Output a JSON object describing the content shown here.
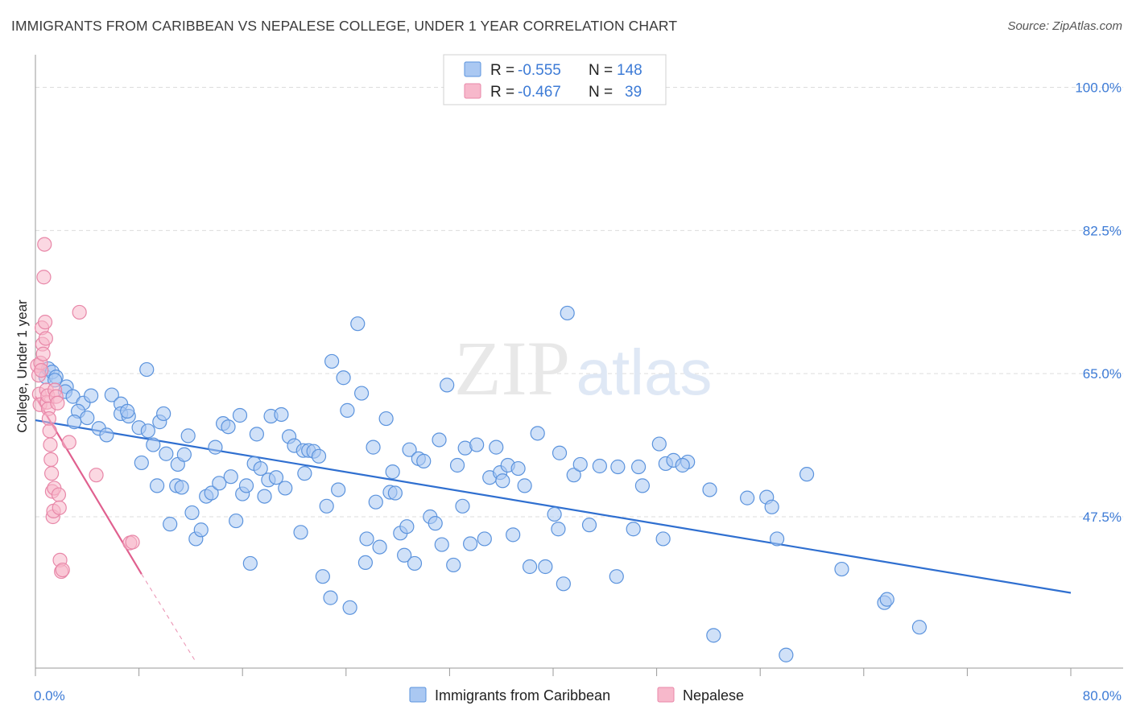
{
  "title": "IMMIGRANTS FROM CARIBBEAN VS NEPALESE COLLEGE, UNDER 1 YEAR CORRELATION CHART",
  "source": "Source: ZipAtlas.com",
  "watermark": {
    "zip": "ZIP",
    "atlas": "atlas"
  },
  "colors": {
    "blue_fill": "#aac8f2",
    "blue_stroke": "#5b93dd",
    "blue_line": "#2f6fd0",
    "pink_fill": "#f7b8cb",
    "pink_stroke": "#e887a8",
    "pink_line": "#e0608f",
    "tick_text": "#3d7bd6",
    "grid": "#dddddd"
  },
  "legend": {
    "rows": [
      {
        "r_label": "R =",
        "r_value": "-0.555",
        "n_label": "N =",
        "n_value": "148"
      },
      {
        "r_label": "R =",
        "r_value": "-0.467",
        "n_label": "N =",
        "n_value": "39"
      }
    ]
  },
  "chart_data": {
    "type": "scatter",
    "title": "IMMIGRANTS FROM CARIBBEAN VS NEPALESE COLLEGE, UNDER 1 YEAR CORRELATION CHART",
    "xlabel": "",
    "ylabel": "College, Under 1 year",
    "xlim": [
      0,
      80
    ],
    "ylim": [
      29,
      103
    ],
    "x_tick_labels": [
      "0.0%",
      "80.0%"
    ],
    "y_ticks": [
      {
        "value": 100,
        "label": "100.0%"
      },
      {
        "value": 82.5,
        "label": "82.5%"
      },
      {
        "value": 65,
        "label": "65.0%"
      },
      {
        "value": 47.5,
        "label": "47.5%"
      }
    ],
    "grid": true,
    "legend_position": "top-center",
    "series": [
      {
        "name": "Immigrants from Caribbean",
        "color": "blue",
        "R": -0.555,
        "N": 148,
        "trend": {
          "x": [
            0,
            80
          ],
          "y": [
            59.3,
            38.2
          ]
        },
        "points": [
          [
            0.8,
            64.6
          ],
          [
            1.0,
            65.6
          ],
          [
            1.3,
            65.2
          ],
          [
            1.6,
            64.6
          ],
          [
            1.5,
            64.2
          ],
          [
            2.4,
            63.4
          ],
          [
            2.3,
            62.8
          ],
          [
            2.9,
            62.2
          ],
          [
            3.7,
            61.4
          ],
          [
            3.3,
            60.4
          ],
          [
            3.0,
            59.1
          ],
          [
            4.3,
            62.3
          ],
          [
            4.0,
            59.6
          ],
          [
            4.9,
            58.3
          ],
          [
            5.5,
            57.5
          ],
          [
            5.9,
            62.4
          ],
          [
            6.6,
            61.3
          ],
          [
            6.6,
            60.1
          ],
          [
            7.2,
            59.8
          ],
          [
            7.1,
            60.4
          ],
          [
            8.0,
            58.4
          ],
          [
            8.2,
            54.1
          ],
          [
            8.7,
            58.0
          ],
          [
            8.6,
            65.5
          ],
          [
            9.1,
            56.3
          ],
          [
            9.4,
            51.3
          ],
          [
            9.6,
            59.1
          ],
          [
            9.9,
            60.1
          ],
          [
            10.1,
            55.2
          ],
          [
            10.4,
            46.6
          ],
          [
            10.9,
            51.3
          ],
          [
            11.0,
            53.9
          ],
          [
            11.3,
            51.1
          ],
          [
            11.5,
            55.1
          ],
          [
            11.8,
            57.4
          ],
          [
            12.1,
            48.0
          ],
          [
            12.4,
            44.8
          ],
          [
            12.8,
            45.9
          ],
          [
            13.2,
            50.0
          ],
          [
            13.6,
            50.4
          ],
          [
            13.9,
            56.0
          ],
          [
            14.2,
            51.6
          ],
          [
            14.5,
            58.9
          ],
          [
            14.9,
            58.5
          ],
          [
            15.1,
            52.4
          ],
          [
            15.5,
            47.0
          ],
          [
            15.8,
            59.9
          ],
          [
            16.0,
            50.3
          ],
          [
            16.3,
            51.3
          ],
          [
            16.6,
            41.8
          ],
          [
            16.9,
            54.0
          ],
          [
            17.1,
            57.6
          ],
          [
            17.4,
            53.4
          ],
          [
            17.7,
            50.0
          ],
          [
            18.0,
            52.0
          ],
          [
            18.2,
            59.8
          ],
          [
            18.6,
            52.3
          ],
          [
            19.0,
            60.0
          ],
          [
            19.3,
            51.0
          ],
          [
            19.6,
            57.3
          ],
          [
            20.0,
            56.2
          ],
          [
            20.5,
            45.6
          ],
          [
            20.8,
            52.8
          ],
          [
            20.7,
            55.6
          ],
          [
            21.1,
            55.6
          ],
          [
            21.5,
            55.5
          ],
          [
            21.9,
            54.9
          ],
          [
            22.2,
            40.2
          ],
          [
            22.5,
            48.8
          ],
          [
            22.9,
            66.5
          ],
          [
            23.4,
            50.8
          ],
          [
            22.8,
            37.6
          ],
          [
            23.8,
            64.5
          ],
          [
            24.1,
            60.5
          ],
          [
            24.3,
            36.4
          ],
          [
            24.9,
            71.1
          ],
          [
            25.2,
            62.6
          ],
          [
            25.6,
            44.8
          ],
          [
            25.5,
            41.9
          ],
          [
            26.1,
            56.0
          ],
          [
            26.3,
            49.3
          ],
          [
            26.6,
            43.8
          ],
          [
            27.1,
            59.5
          ],
          [
            27.4,
            50.5
          ],
          [
            27.8,
            50.4
          ],
          [
            27.6,
            53.0
          ],
          [
            28.2,
            45.5
          ],
          [
            28.5,
            42.8
          ],
          [
            28.7,
            46.3
          ],
          [
            28.9,
            55.7
          ],
          [
            29.3,
            41.8
          ],
          [
            29.6,
            54.6
          ],
          [
            30.0,
            54.3
          ],
          [
            30.5,
            47.5
          ],
          [
            30.9,
            46.7
          ],
          [
            31.2,
            56.9
          ],
          [
            31.4,
            44.1
          ],
          [
            31.8,
            63.6
          ],
          [
            32.3,
            41.6
          ],
          [
            32.6,
            53.8
          ],
          [
            33.2,
            55.9
          ],
          [
            33.6,
            44.2
          ],
          [
            34.1,
            56.3
          ],
          [
            34.7,
            44.8
          ],
          [
            35.1,
            52.3
          ],
          [
            35.6,
            56.0
          ],
          [
            35.9,
            52.9
          ],
          [
            36.1,
            51.9
          ],
          [
            36.5,
            53.8
          ],
          [
            36.9,
            45.3
          ],
          [
            37.3,
            53.4
          ],
          [
            37.8,
            51.3
          ],
          [
            38.2,
            41.4
          ],
          [
            38.8,
            57.7
          ],
          [
            39.4,
            41.4
          ],
          [
            40.1,
            47.8
          ],
          [
            40.4,
            46.0
          ],
          [
            40.5,
            55.3
          ],
          [
            40.8,
            39.3
          ],
          [
            41.1,
            72.4
          ],
          [
            41.6,
            52.6
          ],
          [
            42.1,
            53.9
          ],
          [
            42.8,
            46.5
          ],
          [
            43.6,
            53.7
          ],
          [
            44.9,
            40.2
          ],
          [
            46.2,
            46.0
          ],
          [
            46.6,
            53.6
          ],
          [
            46.9,
            51.3
          ],
          [
            48.2,
            56.4
          ],
          [
            48.7,
            54.0
          ],
          [
            48.5,
            44.8
          ],
          [
            49.3,
            54.4
          ],
          [
            50.4,
            54.2
          ],
          [
            52.1,
            50.8
          ],
          [
            52.4,
            33.0
          ],
          [
            55.0,
            49.8
          ],
          [
            56.5,
            49.9
          ],
          [
            56.9,
            48.7
          ],
          [
            57.3,
            44.8
          ],
          [
            58.0,
            30.6
          ],
          [
            59.6,
            52.7
          ],
          [
            62.3,
            41.1
          ],
          [
            65.6,
            37.0
          ],
          [
            65.8,
            37.4
          ],
          [
            68.3,
            34.0
          ],
          [
            50.0,
            53.8
          ],
          [
            33.0,
            48.8
          ],
          [
            45.0,
            53.6
          ]
        ]
      },
      {
        "name": "Nepalese",
        "color": "pink",
        "R": -0.467,
        "N": 39,
        "trend": {
          "x": [
            0,
            8.2,
            12.3
          ],
          "y": [
            62.2,
            40.5,
            30.0
          ]
        },
        "points": [
          [
            0.15,
            66.0
          ],
          [
            0.25,
            64.8
          ],
          [
            0.3,
            62.5
          ],
          [
            0.35,
            61.2
          ],
          [
            0.4,
            66.3
          ],
          [
            0.45,
            65.4
          ],
          [
            0.5,
            70.6
          ],
          [
            0.55,
            68.6
          ],
          [
            0.6,
            67.4
          ],
          [
            0.65,
            76.8
          ],
          [
            0.7,
            80.8
          ],
          [
            0.75,
            71.3
          ],
          [
            0.8,
            69.3
          ],
          [
            0.85,
            63.0
          ],
          [
            0.9,
            61.5
          ],
          [
            0.95,
            62.3
          ],
          [
            1.0,
            60.7
          ],
          [
            1.05,
            59.5
          ],
          [
            1.1,
            58.0
          ],
          [
            1.15,
            56.3
          ],
          [
            1.2,
            54.5
          ],
          [
            1.25,
            52.8
          ],
          [
            1.3,
            50.6
          ],
          [
            1.35,
            47.5
          ],
          [
            1.4,
            48.2
          ],
          [
            1.45,
            51.0
          ],
          [
            1.5,
            63.0
          ],
          [
            1.6,
            62.2
          ],
          [
            1.7,
            61.4
          ],
          [
            1.8,
            50.2
          ],
          [
            1.85,
            48.6
          ],
          [
            1.9,
            42.2
          ],
          [
            2.0,
            40.8
          ],
          [
            2.1,
            41.0
          ],
          [
            2.6,
            56.6
          ],
          [
            3.4,
            72.5
          ],
          [
            4.7,
            52.6
          ],
          [
            7.3,
            44.3
          ],
          [
            7.5,
            44.4
          ]
        ]
      }
    ]
  },
  "bottom_legend": [
    {
      "label": "Immigrants from Caribbean"
    },
    {
      "label": "Nepalese"
    }
  ]
}
